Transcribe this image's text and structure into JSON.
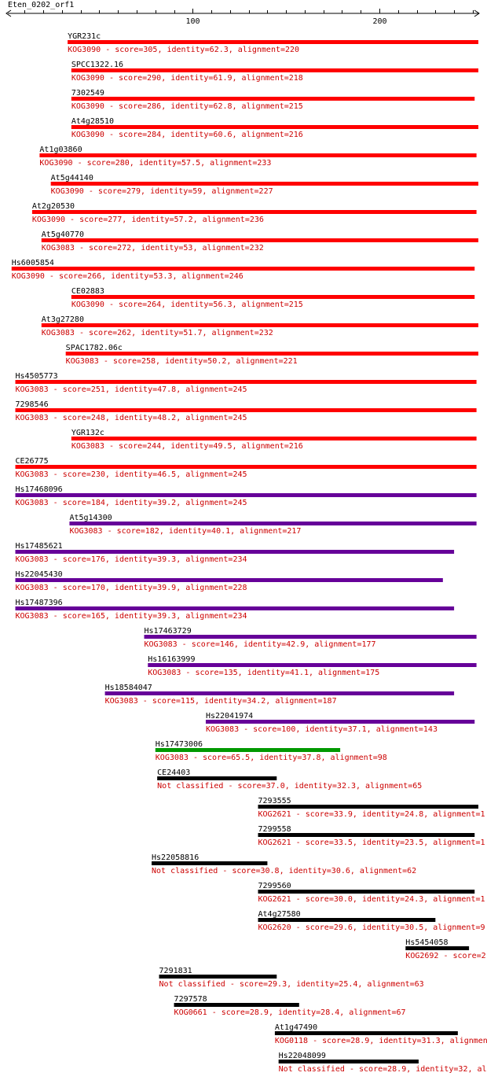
{
  "query": {
    "title": "Eten_0202_orf1",
    "ruler": {
      "min": 1,
      "max": 253,
      "major_ticks": [
        100,
        200
      ],
      "minor_step": 10
    }
  },
  "colors": {
    "red": "#ff0000",
    "purple": "#660099",
    "green": "#009900",
    "black": "#000000",
    "label": "#000000",
    "desc": "#cc0000"
  },
  "chart_data": {
    "type": "alignment-hits",
    "query_length": 253,
    "hits": [
      {
        "name": "YGR231c",
        "start": 33,
        "end": 253,
        "color": "red",
        "desc": "KOG3090 - score=305, identity=62.3, alignment=220"
      },
      {
        "name": "SPCC1322.16",
        "start": 35,
        "end": 253,
        "color": "red",
        "desc": "KOG3090 - score=290, identity=61.9, alignment=218"
      },
      {
        "name": "7302549",
        "start": 35,
        "end": 251,
        "color": "red",
        "desc": "KOG3090 - score=286, identity=62.8, alignment=215"
      },
      {
        "name": "At4g28510",
        "start": 35,
        "end": 253,
        "color": "red",
        "desc": "KOG3090 - score=284, identity=60.6, alignment=216"
      },
      {
        "name": "At1g03860",
        "start": 18,
        "end": 252,
        "color": "red",
        "desc": "KOG3090 - score=280, identity=57.5, alignment=233"
      },
      {
        "name": "At5g44140",
        "start": 24,
        "end": 253,
        "color": "red",
        "desc": "KOG3090 - score=279, identity=59, alignment=227"
      },
      {
        "name": "At2g20530",
        "start": 14,
        "end": 252,
        "color": "red",
        "desc": "KOG3090 - score=277, identity=57.2, alignment=236"
      },
      {
        "name": "At5g40770",
        "start": 19,
        "end": 253,
        "color": "red",
        "desc": "KOG3083 - score=272, identity=53, alignment=232"
      },
      {
        "name": "Hs6005854",
        "start": 3,
        "end": 251,
        "color": "red",
        "desc": "KOG3090 - score=266, identity=53.3, alignment=246"
      },
      {
        "name": "CE02883",
        "start": 35,
        "end": 251,
        "color": "red",
        "desc": "KOG3090 - score=264, identity=56.3, alignment=215"
      },
      {
        "name": "At3g27280",
        "start": 19,
        "end": 253,
        "color": "red",
        "desc": "KOG3083 - score=262, identity=51.7, alignment=232"
      },
      {
        "name": "SPAC1782.06c",
        "start": 32,
        "end": 253,
        "color": "red",
        "desc": "KOG3083 - score=258, identity=50.2, alignment=221"
      },
      {
        "name": "Hs4505773",
        "start": 5,
        "end": 252,
        "color": "red",
        "desc": "KOG3083 - score=251, identity=47.8, alignment=245"
      },
      {
        "name": "7298546",
        "start": 5,
        "end": 252,
        "color": "red",
        "desc": "KOG3083 - score=248, identity=48.2, alignment=245"
      },
      {
        "name": "YGR132c",
        "start": 35,
        "end": 252,
        "color": "red",
        "desc": "KOG3083 - score=244, identity=49.5, alignment=216"
      },
      {
        "name": "CE26775",
        "start": 5,
        "end": 252,
        "color": "red",
        "desc": "KOG3083 - score=230, identity=46.5, alignment=245"
      },
      {
        "name": "Hs17468096",
        "start": 5,
        "end": 252,
        "color": "purple",
        "desc": "KOG3083 - score=184, identity=39.2, alignment=245"
      },
      {
        "name": "At5g14300",
        "start": 34,
        "end": 252,
        "color": "purple",
        "desc": "KOG3083 - score=182, identity=40.1, alignment=217"
      },
      {
        "name": "Hs17485621",
        "start": 5,
        "end": 240,
        "color": "purple",
        "desc": "KOG3083 - score=176, identity=39.3, alignment=234"
      },
      {
        "name": "Hs22045430",
        "start": 5,
        "end": 234,
        "color": "purple",
        "desc": "KOG3083 - score=170, identity=39.9, alignment=228"
      },
      {
        "name": "Hs17487396",
        "start": 5,
        "end": 240,
        "color": "purple",
        "desc": "KOG3083 - score=165, identity=39.3, alignment=234"
      },
      {
        "name": "Hs17463729",
        "start": 74,
        "end": 252,
        "color": "purple",
        "desc": "KOG3083 - score=146, identity=42.9, alignment=177"
      },
      {
        "name": "Hs16163999",
        "start": 76,
        "end": 252,
        "color": "purple",
        "desc": "KOG3083 - score=135, identity=41.1, alignment=175"
      },
      {
        "name": "Hs18584047",
        "start": 53,
        "end": 240,
        "color": "purple",
        "desc": "KOG3083 - score=115, identity=34.2, alignment=187"
      },
      {
        "name": "Hs22041974",
        "start": 107,
        "end": 251,
        "color": "purple",
        "desc": "KOG3083 - score=100, identity=37.1, alignment=143"
      },
      {
        "name": "Hs17473006",
        "start": 80,
        "end": 179,
        "color": "green",
        "desc": "KOG3083 - score=65.5, identity=37.8, alignment=98"
      },
      {
        "name": "CE24403",
        "start": 81,
        "end": 145,
        "color": "black",
        "desc": "Not classified - score=37.0, identity=32.3, alignment=65"
      },
      {
        "name": "7293555",
        "start": 135,
        "end": 253,
        "color": "black",
        "desc": "KOG2621 - score=33.9, identity=24.8, alignment=1"
      },
      {
        "name": "7299558",
        "start": 135,
        "end": 251,
        "color": "black",
        "desc": "KOG2621 - score=33.5, identity=23.5, alignment=1"
      },
      {
        "name": "Hs22058816",
        "start": 78,
        "end": 140,
        "color": "black",
        "desc": "Not classified - score=30.8, identity=30.6, alignment=62"
      },
      {
        "name": "7299560",
        "start": 135,
        "end": 251,
        "color": "black",
        "desc": "KOG2621 - score=30.0, identity=24.3, alignment=1"
      },
      {
        "name": "At4g27580",
        "start": 135,
        "end": 230,
        "color": "black",
        "desc": "KOG2620 - score=29.6, identity=30.5, alignment=9"
      },
      {
        "name": "Hs5454058",
        "start": 214,
        "end": 248,
        "color": "black",
        "desc": "KOG2692 - score=2"
      },
      {
        "name": "7291831",
        "start": 82,
        "end": 145,
        "color": "black",
        "desc": "Not classified - score=29.3, identity=25.4, alignment=63"
      },
      {
        "name": "7297578",
        "start": 90,
        "end": 157,
        "color": "black",
        "desc": "KOG0661 - score=28.9, identity=28.4, alignment=67"
      },
      {
        "name": "At1g47490",
        "start": 144,
        "end": 242,
        "color": "black",
        "desc": "KOG0118 - score=28.9, identity=31.3, alignmen"
      },
      {
        "name": "Hs22048099",
        "start": 146,
        "end": 221,
        "color": "black",
        "desc": "Not classified - score=28.9, identity=32, al"
      }
    ]
  }
}
